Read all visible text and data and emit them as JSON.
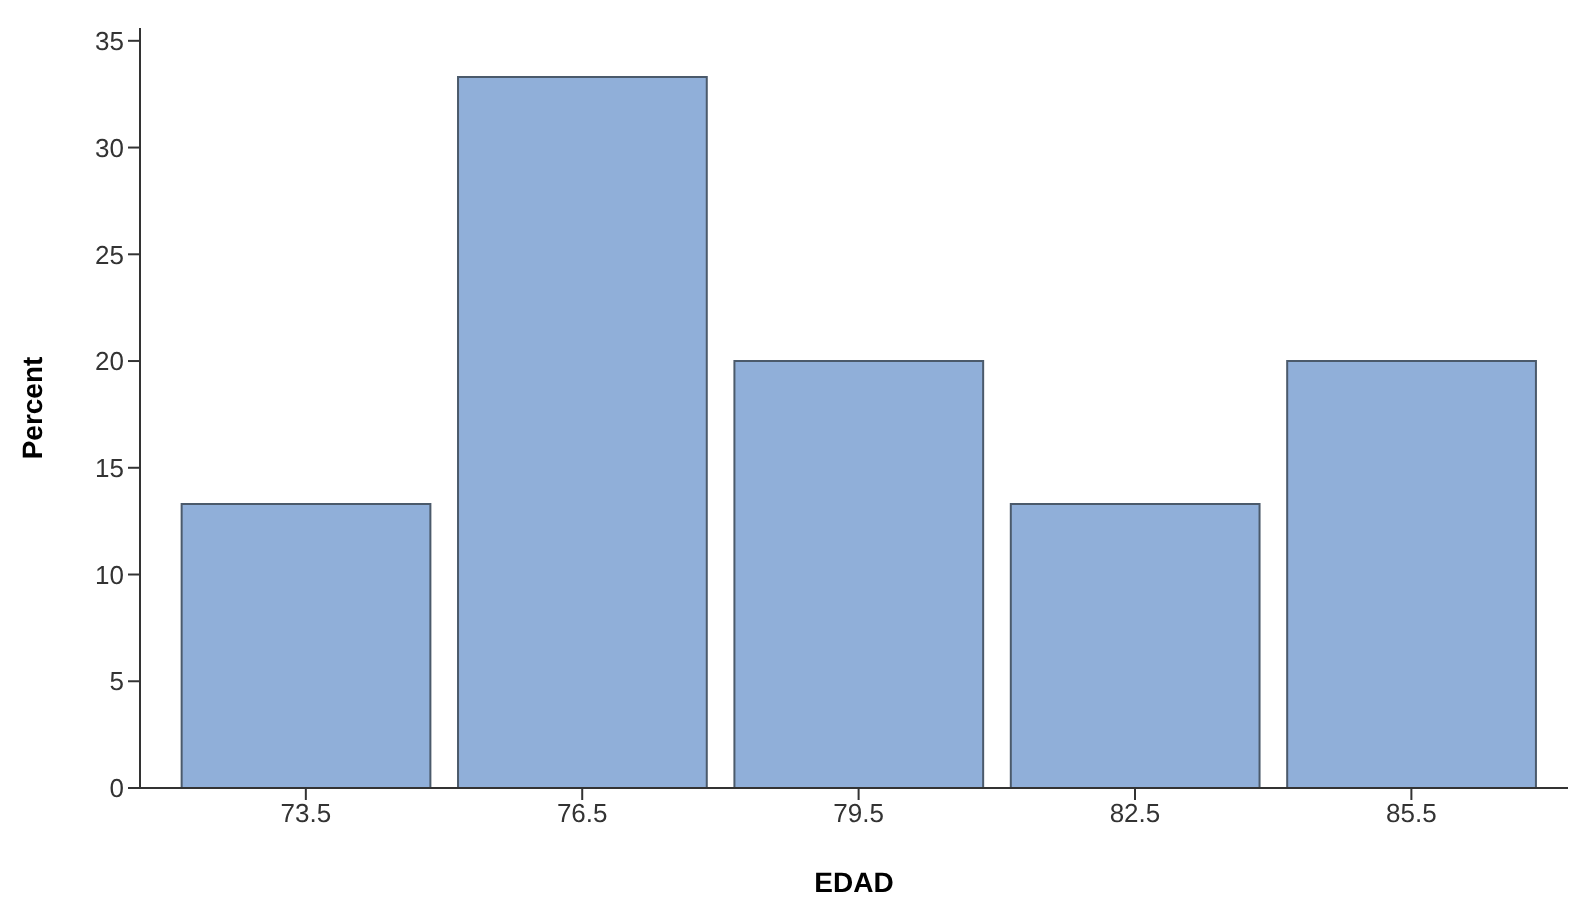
{
  "chart_data": {
    "type": "histogram",
    "xlabel": "EDAD",
    "ylabel": "Percent",
    "bins": [
      72,
      75,
      78,
      81,
      84,
      87
    ],
    "values": [
      13.3,
      33.3,
      20,
      13.3,
      20
    ],
    "color": "#90afd9",
    "xlim": [
      71.7,
      87.2
    ],
    "xticks": [
      73.5,
      76.5,
      79.5,
      82.5,
      85.5
    ],
    "ylim": [
      0,
      35.6
    ],
    "yticks": [
      0,
      5,
      10,
      15,
      20,
      25,
      30,
      35
    ],
    "grid": false,
    "legend": false
  }
}
